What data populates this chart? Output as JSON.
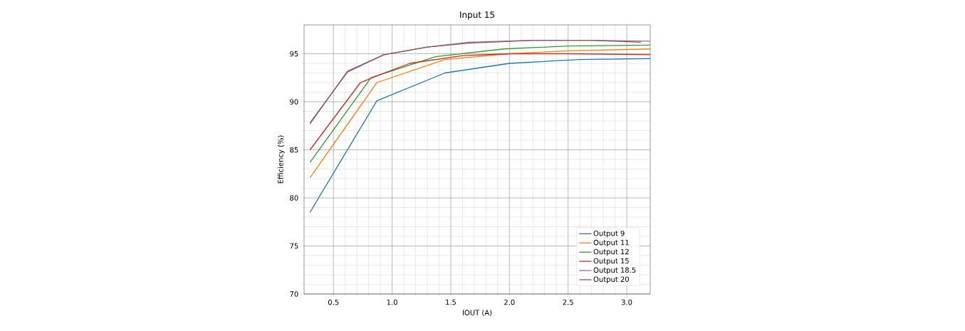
{
  "chart_data": {
    "type": "line",
    "title": "Input 15",
    "xlabel": "IOUT (A)",
    "ylabel": "Efficiency (%)",
    "xlim": [
      0.25,
      3.2
    ],
    "ylim": [
      70,
      98
    ],
    "xticks": [
      {
        "value": 0.5,
        "label": "0.5"
      },
      {
        "value": 1.0,
        "label": "1.0"
      },
      {
        "value": 1.5,
        "label": "1.5"
      },
      {
        "value": 2.0,
        "label": "2.0"
      },
      {
        "value": 2.5,
        "label": "2.5"
      },
      {
        "value": 3.0,
        "label": "3.0"
      }
    ],
    "yticks": [
      70,
      75,
      80,
      85,
      90,
      95
    ],
    "grid": true,
    "legend": "bottom right",
    "marker": "none",
    "line_style": "solid",
    "series": [
      {
        "name": "Output 9",
        "color": "#1f77b4",
        "x": [
          0.3,
          0.87,
          1.45,
          2.0,
          2.6,
          3.2
        ],
        "values": [
          78.5,
          90.1,
          93.0,
          94.0,
          94.4,
          94.5
        ]
      },
      {
        "name": "Output 11",
        "color": "#ff7f0e",
        "x": [
          0.3,
          0.87,
          1.45,
          2.0,
          2.5,
          3.2
        ],
        "values": [
          82.1,
          92.0,
          94.4,
          95.0,
          95.3,
          95.5
        ]
      },
      {
        "name": "Output 12",
        "color": "#2ca02c",
        "x": [
          0.3,
          0.82,
          1.37,
          1.95,
          2.5,
          3.2
        ],
        "values": [
          83.7,
          92.5,
          94.7,
          95.5,
          95.8,
          95.9
        ]
      },
      {
        "name": "Output 15",
        "color": "#d62728",
        "x": [
          0.3,
          0.73,
          0.87,
          1.15,
          1.6,
          2.0,
          2.5,
          3.2
        ],
        "values": [
          85.0,
          92.0,
          92.7,
          94.0,
          94.8,
          95.0,
          95.0,
          94.9
        ]
      },
      {
        "name": "Output 18.5",
        "color": "#9467bd",
        "x": [
          0.3,
          0.62,
          0.93,
          1.3,
          1.65,
          2.2,
          2.7,
          3.2
        ],
        "values": [
          87.7,
          93.2,
          94.9,
          95.7,
          96.2,
          96.4,
          96.4,
          96.3
        ]
      },
      {
        "name": "Output 20",
        "color": "#8c564b",
        "x": [
          0.3,
          0.62,
          0.93,
          1.3,
          1.65,
          2.2,
          2.7,
          3.12
        ],
        "values": [
          87.8,
          93.1,
          94.9,
          95.7,
          96.1,
          96.4,
          96.4,
          96.2
        ]
      }
    ]
  }
}
